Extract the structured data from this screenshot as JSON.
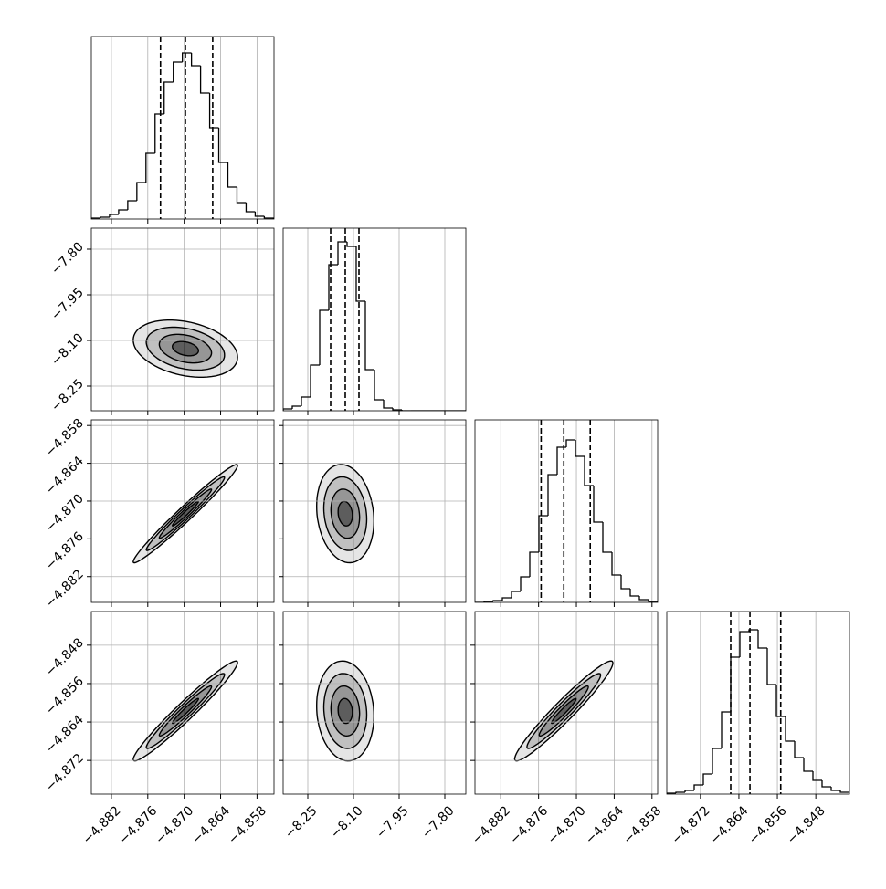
{
  "chart_data": {
    "type": "corner",
    "grid": true,
    "levels": [
      0.5,
      1,
      1.5,
      2
    ],
    "hist_ylim": [
      0,
      200
    ],
    "parameters": [
      {
        "lim": [
          -4.8853,
          -4.8552
        ],
        "ticks": [
          {
            "value": -4.882,
            "label": "−4.882"
          },
          {
            "value": -4.876,
            "label": "−4.876"
          },
          {
            "value": -4.87,
            "label": "−4.870"
          },
          {
            "value": -4.864,
            "label": "−4.864"
          },
          {
            "value": -4.858,
            "label": "−4.858"
          }
        ],
        "quantiles": [
          -4.8739,
          -4.8698,
          -4.8653
        ],
        "bins": [
          -4.8853,
          -4.8838,
          -4.8823,
          -4.8808,
          -4.8793,
          -4.8778,
          -4.8763,
          -4.8748,
          -4.8733,
          -4.8718,
          -4.8703,
          -4.8688,
          -4.8673,
          -4.8658,
          -4.8643,
          -4.8628,
          -4.8613,
          -4.8598,
          -4.8583,
          -4.8568,
          -4.8553
        ],
        "counts": [
          1,
          2,
          5,
          10,
          20,
          40,
          72,
          115,
          150,
          172,
          182,
          168,
          138,
          100,
          62,
          35,
          18,
          8,
          3,
          1
        ]
      },
      {
        "lim": [
          -8.331,
          -7.731
        ],
        "ticks": [
          {
            "value": -8.25,
            "label": "−8.25"
          },
          {
            "value": -8.1,
            "label": "−8.10"
          },
          {
            "value": -7.95,
            "label": "−7.95"
          },
          {
            "value": -7.8,
            "label": "−7.80"
          }
        ],
        "quantiles": [
          -8.175,
          -8.127,
          -8.082
        ],
        "bins": [
          -8.331,
          -8.301,
          -8.271,
          -8.241,
          -8.211,
          -8.181,
          -8.151,
          -8.121,
          -8.091,
          -8.061,
          -8.031,
          -8.001,
          -7.971,
          -7.941,
          -7.911,
          -7.881,
          -7.851,
          -7.821,
          -7.791,
          -7.761,
          -7.731
        ],
        "counts": [
          2,
          5,
          15,
          50,
          110,
          160,
          185,
          180,
          120,
          45,
          12,
          3,
          1,
          0,
          0,
          0,
          0,
          0,
          0,
          0
        ]
      },
      {
        "lim": [
          -4.8861,
          -4.8571
        ],
        "ticks": [
          {
            "value": -4.882,
            "label": "−4.882"
          },
          {
            "value": -4.876,
            "label": "−4.876"
          },
          {
            "value": -4.87,
            "label": "−4.870"
          },
          {
            "value": -4.864,
            "label": "−4.864"
          },
          {
            "value": -4.858,
            "label": "−4.858"
          }
        ],
        "quantiles": [
          -4.8756,
          -4.872,
          -4.8678
        ],
        "bins": [
          -4.8861,
          -4.88465,
          -4.8832,
          -4.88175,
          -4.8803,
          -4.87885,
          -4.8774,
          -4.87595,
          -4.8745,
          -4.87305,
          -4.8716,
          -4.87015,
          -4.8687,
          -4.86725,
          -4.8658,
          -4.86435,
          -4.8629,
          -4.86145,
          -4.86,
          -4.85855,
          -4.8571
        ],
        "counts": [
          0,
          1,
          2,
          5,
          12,
          28,
          55,
          95,
          140,
          170,
          178,
          160,
          128,
          88,
          55,
          30,
          15,
          7,
          3,
          1
        ]
      },
      {
        "lim": [
          -4.879,
          -4.841
        ],
        "ticks": [
          {
            "value": -4.872,
            "label": "−4.872"
          },
          {
            "value": -4.864,
            "label": "−4.864"
          },
          {
            "value": -4.856,
            "label": "−4.856"
          },
          {
            "value": -4.848,
            "label": "−4.848"
          }
        ],
        "quantiles": [
          -4.8657,
          -4.8617,
          -4.8553
        ],
        "bins": [
          -4.879,
          -4.8771,
          -4.8752,
          -4.8733,
          -4.8714,
          -4.8695,
          -4.8676,
          -4.8657,
          -4.8638,
          -4.8619,
          -4.86,
          -4.8581,
          -4.8562,
          -4.8543,
          -4.8524,
          -4.8505,
          -4.8486,
          -4.8467,
          -4.8448,
          -4.8429,
          -4.841
        ],
        "counts": [
          1,
          2,
          4,
          10,
          22,
          50,
          90,
          150,
          178,
          180,
          160,
          120,
          85,
          58,
          40,
          25,
          15,
          8,
          4,
          2
        ]
      }
    ],
    "pairs": [
      [
        {
          "mean": [
            -4.8698,
            -8.127
          ],
          "sd": [
            0.0043,
            0.047
          ],
          "corr": -0.3
        }
      ],
      [
        {
          "mean": [
            -4.8698,
            -4.872
          ],
          "sd": [
            0.0043,
            0.0039
          ],
          "corr": 0.98
        },
        {
          "mean": [
            -8.127,
            -4.872
          ],
          "sd": [
            0.047,
            0.0039
          ],
          "corr": -0.15
        }
      ],
      [
        {
          "mean": [
            -4.8698,
            -4.8617
          ],
          "sd": [
            0.0043,
            0.0052
          ],
          "corr": 0.97
        },
        {
          "mean": [
            -8.127,
            -4.8617
          ],
          "sd": [
            0.047,
            0.0052
          ],
          "corr": -0.1
        },
        {
          "mean": [
            -4.872,
            -4.8617
          ],
          "sd": [
            0.0039,
            0.0052
          ],
          "corr": 0.96
        }
      ]
    ]
  }
}
